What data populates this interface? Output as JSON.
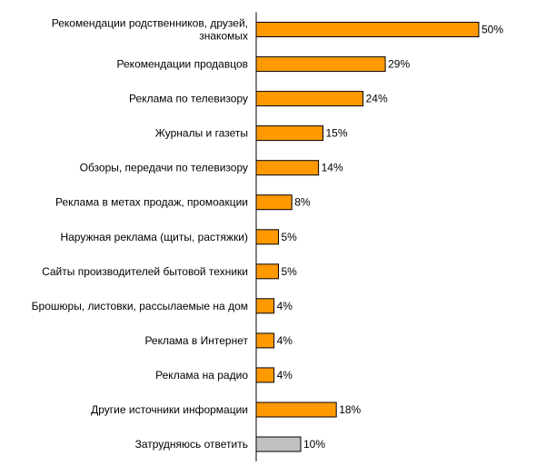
{
  "chart_data": {
    "type": "bar",
    "orientation": "horizontal",
    "categories": [
      [
        "Рекомендации родственников, друзей,",
        "знакомых"
      ],
      [
        "Рекомендации продавцов"
      ],
      [
        "Реклама по телевизору"
      ],
      [
        "Журналы и газеты"
      ],
      [
        "Обзоры, передачи по телевизору"
      ],
      [
        "Реклама в метах продаж, промоакции"
      ],
      [
        "Наружная реклама (щиты, растяжки)"
      ],
      [
        "Сайты производителей бытовой техники"
      ],
      [
        "Брошюры, листовки, рассылаемые на дом"
      ],
      [
        "Реклама в Интернет"
      ],
      [
        "Реклама на радио"
      ],
      [
        "Другие источники информации"
      ],
      [
        "Затрудняюсь ответить"
      ]
    ],
    "values": [
      50,
      29,
      24,
      15,
      14,
      8,
      5,
      5,
      4,
      4,
      4,
      18,
      10
    ],
    "value_labels": [
      "50%",
      "29%",
      "24%",
      "15%",
      "14%",
      "8%",
      "5%",
      "5%",
      "4%",
      "4%",
      "4%",
      "18%",
      "10%"
    ],
    "colors": [
      "#FF9900",
      "#FF9900",
      "#FF9900",
      "#FF9900",
      "#FF9900",
      "#FF9900",
      "#FF9900",
      "#FF9900",
      "#FF9900",
      "#FF9900",
      "#FF9900",
      "#FF9900",
      "#C0C0C0"
    ],
    "xlim": [
      0,
      50
    ],
    "grid": false,
    "legend": "none"
  }
}
